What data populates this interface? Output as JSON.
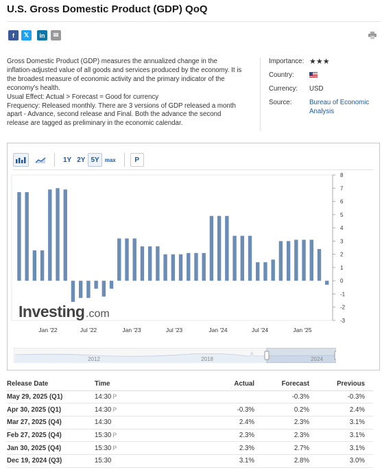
{
  "page": {
    "title": "U.S. Gross Domestic Product (GDP) QoQ"
  },
  "share": {
    "facebook_icon": "f",
    "twitter_icon": "𝕏",
    "linkedin_icon": "in",
    "email_icon": "✉"
  },
  "description": {
    "line1": "Gross Domestic Product (GDP) measures the annualized change in the inflation-adjusted value of all goods and services produced by the economy. It is the broadest measure of economic activity and the primary indicator of the economy's health.",
    "line2": "Usual Effect: Actual > Forecast = Good for currency",
    "line3": "Frequency: Released monthly. There are 3 versions of GDP released a month apart - Advance, second release and Final. Both the advance the second release are tagged as preliminary in the economic calendar."
  },
  "info": {
    "importance_label": "Importance:",
    "importance_stars": "★★★",
    "country_label": "Country:",
    "currency_label": "Currency:",
    "currency_value": "USD",
    "source_label": "Source:",
    "source_value_1": "Bureau of Economic",
    "source_value_2": "Analysis"
  },
  "toolbar": {
    "range_1y": "1Y",
    "range_2y": "2Y",
    "range_5y": "5Y",
    "range_max": "max",
    "prelim_toggle": "P",
    "active_range": "5Y"
  },
  "chart_data": {
    "type": "bar",
    "xlabel": "",
    "ylabel": "",
    "ylim": [
      -3,
      8
    ],
    "yticks": [
      8,
      7,
      6,
      5,
      4,
      3,
      2,
      1,
      0,
      -1,
      -2,
      -3
    ],
    "x_tick_labels": [
      "Jan '22",
      "Jul '22",
      "Jan '23",
      "Jul '23",
      "Jan '24",
      "Jul '24",
      "Jan '25"
    ],
    "values": [
      6.7,
      6.7,
      2.3,
      2.3,
      6.9,
      7.0,
      6.9,
      -1.6,
      -1.3,
      -1.3,
      -0.6,
      -1.2,
      -0.6,
      3.2,
      3.2,
      3.2,
      2.6,
      2.6,
      2.6,
      2.0,
      2.0,
      2.0,
      2.1,
      2.1,
      2.1,
      4.9,
      4.9,
      4.9,
      3.4,
      3.4,
      3.4,
      1.4,
      1.4,
      1.6,
      3.0,
      3.0,
      3.1,
      3.1,
      3.1,
      2.4,
      -0.3
    ],
    "color": "#6b8cb5",
    "watermark": "Investing",
    "watermark_suffix": ".com",
    "navigator_labels": [
      "2012",
      "2018",
      "2024"
    ]
  },
  "table": {
    "headers": [
      "Release Date",
      "Time",
      "Actual",
      "Forecast",
      "Previous"
    ],
    "rows": [
      {
        "date": "May 29, 2025 (Q1)",
        "time": "14:30",
        "prelim": true,
        "actual": "",
        "actual_color": "",
        "forecast": "-0.3%",
        "previous": "-0.3%"
      },
      {
        "date": "Apr 30, 2025 (Q1)",
        "time": "14:30",
        "prelim": true,
        "actual": "-0.3%",
        "actual_color": "red",
        "forecast": "0.2%",
        "previous": "2.4%"
      },
      {
        "date": "Mar 27, 2025 (Q4)",
        "time": "14:30",
        "prelim": false,
        "actual": "2.4%",
        "actual_color": "green",
        "forecast": "2.3%",
        "previous": "3.1%"
      },
      {
        "date": "Feb 27, 2025 (Q4)",
        "time": "15:30",
        "prelim": true,
        "actual": "2.3%",
        "actual_color": "",
        "forecast": "2.3%",
        "previous": "3.1%"
      },
      {
        "date": "Jan 30, 2025 (Q4)",
        "time": "15:30",
        "prelim": true,
        "actual": "2.3%",
        "actual_color": "red",
        "forecast": "2.7%",
        "previous": "3.1%"
      },
      {
        "date": "Dec 19, 2024 (Q3)",
        "time": "15:30",
        "prelim": false,
        "actual": "3.1%",
        "actual_color": "green",
        "forecast": "2.8%",
        "previous": "3.0%"
      }
    ],
    "prelim_marker": "P"
  }
}
